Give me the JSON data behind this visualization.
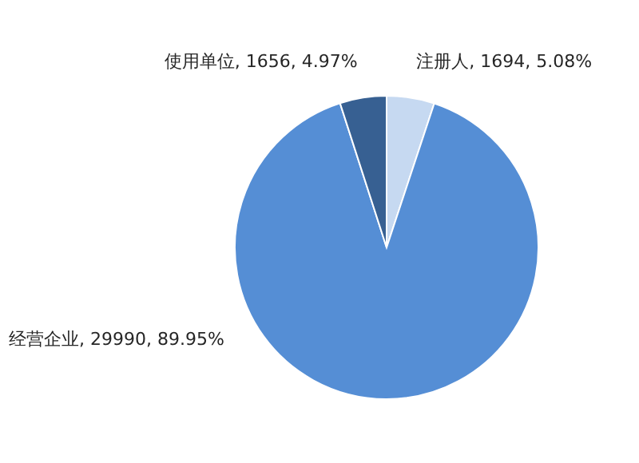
{
  "chart_data": {
    "type": "pie",
    "categories": [
      "注册人",
      "经营企业",
      "使用单位"
    ],
    "values": [
      1694,
      29990,
      1656
    ],
    "value_labels": [
      "1694, 5.08%",
      "29990, 89.95%",
      "1656, 4.97%"
    ],
    "colors": [
      "#c6d9f1",
      "#558ed5",
      "#376092"
    ]
  }
}
